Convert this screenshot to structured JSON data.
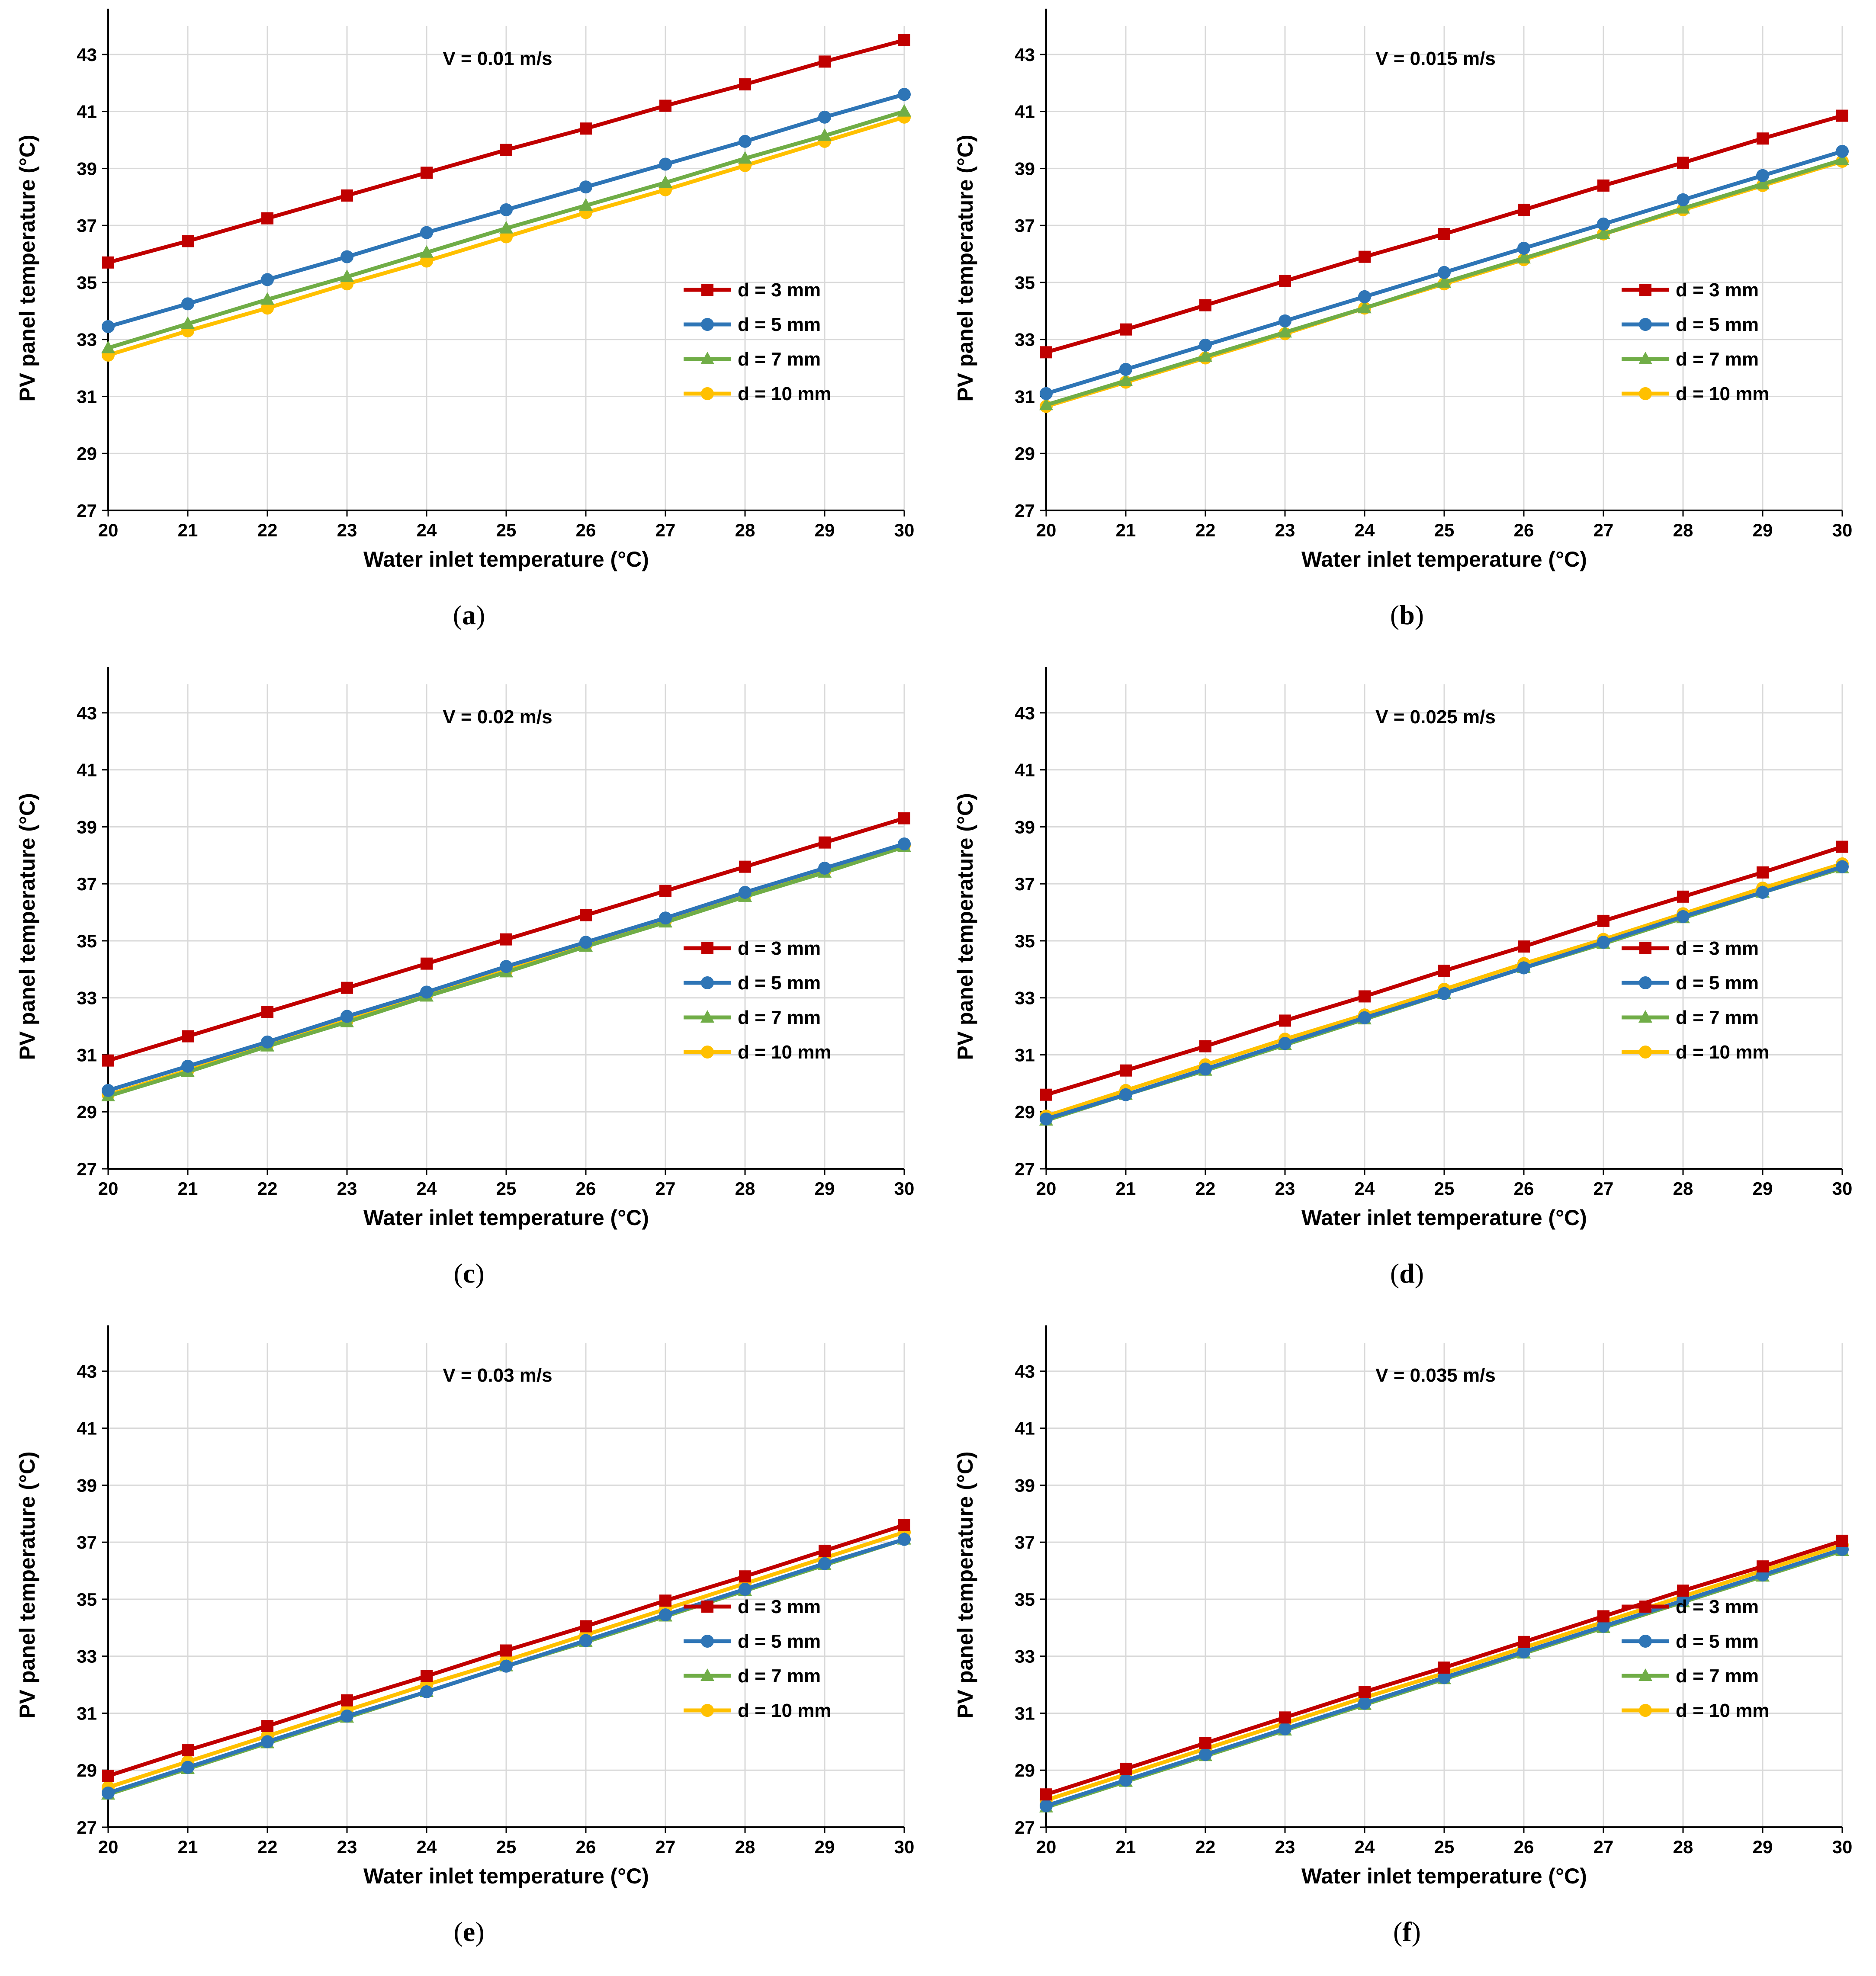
{
  "figure": {
    "series_names": [
      "d = 3 mm",
      "d = 5 mm",
      "d = 7 mm",
      "d = 10 mm"
    ],
    "colors": {
      "d3": "#c00000",
      "d5": "#2e75b6",
      "d7": "#70ad47",
      "d10": "#ffc000"
    }
  },
  "chart_data": [
    {
      "type": "line",
      "panel": "a",
      "caption_letter": "a",
      "annotation": "V = 0.01 m/s",
      "xlabel": "Water inlet temperature (°C)",
      "ylabel": "PV panel temperature (°C)",
      "xlim": [
        20,
        30
      ],
      "ylim": [
        27,
        44
      ],
      "xticks": [
        20,
        21,
        22,
        23,
        24,
        25,
        26,
        27,
        28,
        29,
        30
      ],
      "yticks": [
        27,
        29,
        31,
        33,
        35,
        37,
        39,
        41,
        43
      ],
      "x": [
        20,
        21,
        22,
        23,
        24,
        25,
        26,
        27,
        28,
        29,
        30
      ],
      "series": [
        {
          "name": "d = 3 mm",
          "marker": "square",
          "values": [
            35.7,
            36.45,
            37.25,
            38.05,
            38.85,
            39.65,
            40.4,
            41.2,
            41.95,
            42.75,
            43.5
          ]
        },
        {
          "name": "d = 5 mm",
          "marker": "circle",
          "values": [
            33.45,
            34.25,
            35.1,
            35.9,
            36.75,
            37.55,
            38.35,
            39.15,
            39.95,
            40.8,
            41.6
          ]
        },
        {
          "name": "d = 7 mm",
          "marker": "triangle",
          "values": [
            32.7,
            33.55,
            34.4,
            35.2,
            36.05,
            36.9,
            37.7,
            38.5,
            39.35,
            40.15,
            41.0
          ]
        },
        {
          "name": "d = 10 mm",
          "marker": "circle",
          "values": [
            32.45,
            33.3,
            34.1,
            34.95,
            35.75,
            36.6,
            37.45,
            38.25,
            39.1,
            39.95,
            40.8
          ]
        }
      ]
    },
    {
      "type": "line",
      "panel": "b",
      "caption_letter": "b",
      "annotation": "V = 0.015 m/s",
      "xlabel": "Water inlet temperature (°C)",
      "ylabel": "PV panel temperature (°C)",
      "xlim": [
        20,
        30
      ],
      "ylim": [
        27,
        44
      ],
      "xticks": [
        20,
        21,
        22,
        23,
        24,
        25,
        26,
        27,
        28,
        29,
        30
      ],
      "yticks": [
        27,
        29,
        31,
        33,
        35,
        37,
        39,
        41,
        43
      ],
      "x": [
        20,
        21,
        22,
        23,
        24,
        25,
        26,
        27,
        28,
        29,
        30
      ],
      "series": [
        {
          "name": "d = 3 mm",
          "marker": "square",
          "values": [
            32.55,
            33.35,
            34.2,
            35.05,
            35.9,
            36.7,
            37.55,
            38.4,
            39.2,
            40.05,
            40.85
          ]
        },
        {
          "name": "d = 5 mm",
          "marker": "circle",
          "values": [
            31.1,
            31.95,
            32.8,
            33.65,
            34.5,
            35.35,
            36.2,
            37.05,
            37.9,
            38.75,
            39.6
          ]
        },
        {
          "name": "d = 7 mm",
          "marker": "triangle",
          "values": [
            30.7,
            31.55,
            32.4,
            33.25,
            34.1,
            35.0,
            35.85,
            36.7,
            37.6,
            38.45,
            39.3
          ]
        },
        {
          "name": "d = 10 mm",
          "marker": "circle",
          "values": [
            30.65,
            31.5,
            32.35,
            33.2,
            34.1,
            34.95,
            35.8,
            36.7,
            37.55,
            38.4,
            39.25
          ]
        }
      ]
    },
    {
      "type": "line",
      "panel": "c",
      "caption_letter": "c",
      "annotation": "V = 0.02 m/s",
      "xlabel": "Water inlet temperature (°C)",
      "ylabel": "PV panel temperature (°C)",
      "xlim": [
        20,
        30
      ],
      "ylim": [
        27,
        44
      ],
      "xticks": [
        20,
        21,
        22,
        23,
        24,
        25,
        26,
        27,
        28,
        29,
        30
      ],
      "yticks": [
        27,
        29,
        31,
        33,
        35,
        37,
        39,
        41,
        43
      ],
      "x": [
        20,
        21,
        22,
        23,
        24,
        25,
        26,
        27,
        28,
        29,
        30
      ],
      "series": [
        {
          "name": "d = 3 mm",
          "marker": "square",
          "values": [
            30.8,
            31.65,
            32.5,
            33.35,
            34.2,
            35.05,
            35.9,
            36.75,
            37.6,
            38.45,
            39.3
          ]
        },
        {
          "name": "d = 5 mm",
          "marker": "circle",
          "values": [
            29.75,
            30.6,
            31.45,
            32.35,
            33.2,
            34.1,
            34.95,
            35.8,
            36.7,
            37.55,
            38.4
          ]
        },
        {
          "name": "d = 7 mm",
          "marker": "triangle",
          "values": [
            29.55,
            30.4,
            31.3,
            32.15,
            33.05,
            33.9,
            34.8,
            35.65,
            36.55,
            37.4,
            38.3
          ]
        },
        {
          "name": "d = 10 mm",
          "marker": "circle",
          "values": [
            29.6,
            30.45,
            31.35,
            32.2,
            33.1,
            33.95,
            34.85,
            35.7,
            36.6,
            37.45,
            38.35
          ]
        }
      ]
    },
    {
      "type": "line",
      "panel": "d",
      "caption_letter": "d",
      "annotation": "V = 0.025 m/s",
      "xlabel": "Water inlet temperature (°C)",
      "ylabel": "PV panel temperature (°C)",
      "xlim": [
        20,
        30
      ],
      "ylim": [
        27,
        44
      ],
      "xticks": [
        20,
        21,
        22,
        23,
        24,
        25,
        26,
        27,
        28,
        29,
        30
      ],
      "yticks": [
        27,
        29,
        31,
        33,
        35,
        37,
        39,
        41,
        43
      ],
      "x": [
        20,
        21,
        22,
        23,
        24,
        25,
        26,
        27,
        28,
        29,
        30
      ],
      "series": [
        {
          "name": "d = 3 mm",
          "marker": "square",
          "values": [
            29.6,
            30.45,
            31.3,
            32.2,
            33.05,
            33.95,
            34.8,
            35.7,
            36.55,
            37.4,
            38.3
          ]
        },
        {
          "name": "d = 5 mm",
          "marker": "circle",
          "values": [
            28.75,
            29.6,
            30.5,
            31.4,
            32.3,
            33.15,
            34.05,
            34.95,
            35.85,
            36.7,
            37.6
          ]
        },
        {
          "name": "d = 7 mm",
          "marker": "triangle",
          "values": [
            28.7,
            29.6,
            30.45,
            31.35,
            32.25,
            33.15,
            34.05,
            34.9,
            35.8,
            36.7,
            37.55
          ]
        },
        {
          "name": "d = 10 mm",
          "marker": "circle",
          "values": [
            28.85,
            29.75,
            30.65,
            31.55,
            32.4,
            33.3,
            34.2,
            35.05,
            35.95,
            36.85,
            37.7
          ]
        }
      ]
    },
    {
      "type": "line",
      "panel": "e",
      "caption_letter": "e",
      "annotation": "V = 0.03 m/s",
      "xlabel": "Water inlet temperature (°C)",
      "ylabel": "PV panel temperature (°C)",
      "xlim": [
        20,
        30
      ],
      "ylim": [
        27,
        44
      ],
      "xticks": [
        20,
        21,
        22,
        23,
        24,
        25,
        26,
        27,
        28,
        29,
        30
      ],
      "yticks": [
        27,
        29,
        31,
        33,
        35,
        37,
        39,
        41,
        43
      ],
      "x": [
        20,
        21,
        22,
        23,
        24,
        25,
        26,
        27,
        28,
        29,
        30
      ],
      "series": [
        {
          "name": "d = 3 mm",
          "marker": "square",
          "values": [
            28.8,
            29.7,
            30.55,
            31.45,
            32.3,
            33.2,
            34.05,
            34.95,
            35.8,
            36.7,
            37.6
          ]
        },
        {
          "name": "d = 5 mm",
          "marker": "circle",
          "values": [
            28.2,
            29.1,
            30.0,
            30.9,
            31.75,
            32.65,
            33.55,
            34.45,
            35.35,
            36.25,
            37.1
          ]
        },
        {
          "name": "d = 7 mm",
          "marker": "triangle",
          "values": [
            28.15,
            29.05,
            29.95,
            30.85,
            31.75,
            32.65,
            33.5,
            34.4,
            35.3,
            36.2,
            37.1
          ]
        },
        {
          "name": "d = 10 mm",
          "marker": "circle",
          "values": [
            28.4,
            29.3,
            30.2,
            31.1,
            32.0,
            32.85,
            33.75,
            34.65,
            35.55,
            36.45,
            37.35
          ]
        }
      ]
    },
    {
      "type": "line",
      "panel": "f",
      "caption_letter": "f",
      "annotation": "V = 0.035 m/s",
      "xlabel": "Water inlet temperature (°C)",
      "ylabel": "PV panel temperature (°C)",
      "xlim": [
        20,
        30
      ],
      "ylim": [
        27,
        44
      ],
      "xticks": [
        20,
        21,
        22,
        23,
        24,
        25,
        26,
        27,
        28,
        29,
        30
      ],
      "yticks": [
        27,
        29,
        31,
        33,
        35,
        37,
        39,
        41,
        43
      ],
      "x": [
        20,
        21,
        22,
        23,
        24,
        25,
        26,
        27,
        28,
        29,
        30
      ],
      "series": [
        {
          "name": "d = 3 mm",
          "marker": "square",
          "values": [
            28.15,
            29.05,
            29.95,
            30.85,
            31.75,
            32.6,
            33.5,
            34.4,
            35.3,
            36.15,
            37.05
          ]
        },
        {
          "name": "d = 5 mm",
          "marker": "circle",
          "values": [
            27.75,
            28.65,
            29.55,
            30.45,
            31.35,
            32.25,
            33.15,
            34.05,
            34.95,
            35.85,
            36.75
          ]
        },
        {
          "name": "d = 7 mm",
          "marker": "triangle",
          "values": [
            27.7,
            28.6,
            29.5,
            30.4,
            31.3,
            32.2,
            33.1,
            34.0,
            34.9,
            35.8,
            36.7
          ]
        },
        {
          "name": "d = 10 mm",
          "marker": "circle",
          "values": [
            27.95,
            28.85,
            29.75,
            30.65,
            31.55,
            32.4,
            33.3,
            34.2,
            35.1,
            36.0,
            36.9
          ]
        }
      ]
    }
  ]
}
